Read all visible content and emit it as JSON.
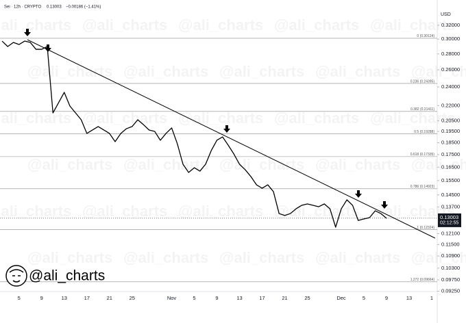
{
  "chart_data": {
    "type": "line",
    "header": {
      "symbol": "Sei · 12h · CRYPTO",
      "change": "−0.00186 (−1.41%)"
    },
    "currency": "USD",
    "last_price": 0.13003,
    "countdown": "02:12:55",
    "watermark": "@ali_charts",
    "log_scale": true,
    "grid": false,
    "categories": [
      null,
      null,
      null,
      "5",
      null,
      null,
      null,
      "9",
      null,
      null,
      null,
      "13",
      null,
      null,
      null,
      "17",
      null,
      null,
      null,
      "21",
      null,
      null,
      null,
      "25",
      null,
      null,
      null,
      null,
      null,
      null,
      "Nov",
      null,
      null,
      null,
      "5",
      null,
      null,
      null,
      "9",
      null,
      null,
      null,
      "13",
      null,
      null,
      null,
      "17",
      null,
      null,
      null,
      "21",
      null,
      null,
      null,
      "25",
      null,
      null,
      null,
      null,
      null,
      "Dec",
      null,
      null,
      null,
      "5",
      null,
      null,
      null,
      "9",
      null,
      null,
      null,
      "13",
      null,
      null,
      null,
      "1"
    ],
    "series": [
      {
        "color": "#000000",
        "values": [
          0.2973,
          0.2898,
          0.2954,
          0.2926,
          0.2973,
          0.2954,
          0.2861,
          0.2861,
          0.2898,
          0.2126,
          0.223,
          0.234,
          0.2195,
          0.2126,
          0.2059,
          0.1932,
          0.1963,
          0.1995,
          0.1963,
          0.1932,
          0.1859,
          0.1932,
          0.1975,
          0.1995,
          0.2059,
          0.2013,
          0.1963,
          0.195,
          0.1871,
          0.1932,
          0.1982,
          0.1841,
          0.1673,
          0.161,
          0.1646,
          0.162,
          0.1673,
          0.1783,
          0.1871,
          0.1901,
          0.1829,
          0.1755,
          0.1673,
          0.1631,
          0.158,
          0.152,
          0.1496,
          0.152,
          0.1472,
          0.1329,
          0.1317,
          0.1329,
          0.1359,
          0.1381,
          0.139,
          0.1381,
          0.1372,
          0.139,
          0.1359,
          0.1247,
          0.1359,
          0.1417,
          0.1381,
          0.1287,
          0.1296,
          0.1304,
          0.1346,
          0.1329,
          0.13,
          null,
          null,
          null,
          null,
          null,
          null,
          null,
          null
        ]
      }
    ],
    "ylim": [
      0.0906,
      0.3357
    ],
    "yticks": [
      {
        "value": 0.32,
        "label": "0.32000"
      },
      {
        "value": 0.3,
        "label": "0.30000"
      },
      {
        "value": 0.28,
        "label": "0.28000"
      },
      {
        "value": 0.26,
        "label": "0.26000"
      },
      {
        "value": 0.24,
        "label": "0.24000"
      },
      {
        "value": 0.22,
        "label": "0.22000"
      },
      {
        "value": 0.205,
        "label": "0.20500"
      },
      {
        "value": 0.195,
        "label": "0.19500"
      },
      {
        "value": 0.185,
        "label": "0.18500"
      },
      {
        "value": 0.175,
        "label": "0.17500"
      },
      {
        "value": 0.165,
        "label": "0.16500"
      },
      {
        "value": 0.155,
        "label": "0.15500"
      },
      {
        "value": 0.145,
        "label": "0.14500"
      },
      {
        "value": 0.137,
        "label": "0.13700"
      },
      {
        "value": 0.121,
        "label": "0.12100"
      },
      {
        "value": 0.115,
        "label": "0.11500"
      },
      {
        "value": 0.109,
        "label": "0.10900"
      },
      {
        "value": 0.103,
        "label": "0.10300"
      },
      {
        "value": 0.0975,
        "label": "0.09750"
      },
      {
        "value": 0.0925,
        "label": "0.09250"
      }
    ],
    "fib_levels": [
      {
        "value": 0.30124,
        "label": "0 (0.30124)"
      },
      {
        "value": 0.24395,
        "label": "0.236 (0.24395)"
      },
      {
        "value": 0.21411,
        "label": "0.382 (0.21411)"
      },
      {
        "value": 0.19288,
        "label": "0.5 (0.19288)"
      },
      {
        "value": 0.17335,
        "label": "0.618 (0.17335)"
      },
      {
        "value": 0.14923,
        "label": "0.786 (0.14923)"
      },
      {
        "value": 0.12324,
        "label": "1 (0.12324)"
      },
      {
        "value": 0.09664,
        "label": "1.272 (0.09664)"
      }
    ]
  }
}
